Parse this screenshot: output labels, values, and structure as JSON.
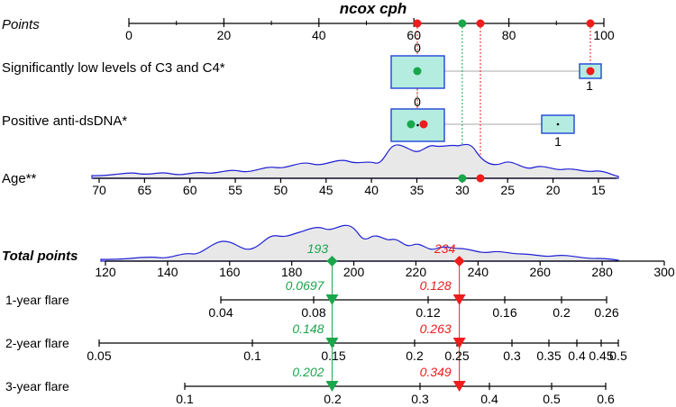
{
  "chart_data": {
    "type": "nomogram",
    "title": "ncox cph",
    "points_axis": {
      "label": "Points",
      "ticks": [
        0,
        20,
        40,
        60,
        80,
        100
      ],
      "range": [
        0,
        100
      ]
    },
    "variables": [
      {
        "label": "Significantly low levels of C3 and C4*",
        "levels": [
          {
            "label": "0",
            "points": 60
          },
          {
            "label": "1",
            "points": 97.4
          }
        ]
      },
      {
        "label": "Positive anti-dsDNA*",
        "levels": [
          {
            "label": "0",
            "points": 60
          },
          {
            "label": "1",
            "points": 87.6
          }
        ]
      },
      {
        "label": "Age**",
        "ticks": [
          70,
          65,
          60,
          55,
          50,
          45,
          40,
          35,
          30,
          25,
          20,
          15
        ],
        "range": [
          70,
          14
        ]
      }
    ],
    "total_points_axis": {
      "label": "Total points",
      "ticks": [
        120,
        140,
        160,
        180,
        200,
        220,
        240,
        260,
        280,
        300
      ],
      "range": [
        120,
        300
      ]
    },
    "outcome_axes": [
      {
        "label": "1-year flare",
        "ticks": [
          "0.04",
          "0.08",
          "0.12",
          "0.16",
          "0.2",
          "0.26"
        ],
        "values": [
          0.04,
          0.08,
          0.12,
          0.16,
          0.2,
          0.26
        ],
        "range": [
          0.04,
          0.26
        ]
      },
      {
        "label": "2-year flare",
        "ticks": [
          "0.05",
          "0.1",
          "0.15",
          "0.2",
          "0.25",
          "0.3",
          "0.35",
          "0.4",
          "0.45",
          "0.5"
        ],
        "values": [
          0.05,
          0.1,
          0.15,
          0.2,
          0.25,
          0.3,
          0.35,
          0.4,
          0.45,
          0.5
        ],
        "range": [
          0.05,
          0.5
        ]
      },
      {
        "label": "3-year flare",
        "ticks": [
          "0.1",
          "0.2",
          "0.3",
          "0.4",
          "0.5",
          "0.6"
        ],
        "values": [
          0.1,
          0.2,
          0.3,
          0.4,
          0.5,
          0.6
        ],
        "range": [
          0.1,
          0.6
        ]
      }
    ],
    "patients": [
      {
        "color": "#1aa64b",
        "age": 30,
        "total_points": 193,
        "total_label": "193",
        "probabilities": [
          {
            "value": 0.0697,
            "label": "0.0697"
          },
          {
            "value": 0.148,
            "label": "0.148"
          },
          {
            "value": 0.202,
            "label": "0.202"
          }
        ]
      },
      {
        "color": "#ee1c1c",
        "age": 28,
        "total_points": 234,
        "total_label": "234",
        "probabilities": [
          {
            "value": 0.128,
            "label": "0.128"
          },
          {
            "value": 0.263,
            "label": "0.263"
          },
          {
            "value": 0.349,
            "label": "0.349"
          }
        ]
      }
    ],
    "colors": {
      "axis": "#000000",
      "density_line": "#1f1fd6",
      "density_fill": "#e8e8e8",
      "box_fill": "#b4ece0",
      "box_stroke": "#1f44d6",
      "connector": "#aaaaaa"
    }
  }
}
